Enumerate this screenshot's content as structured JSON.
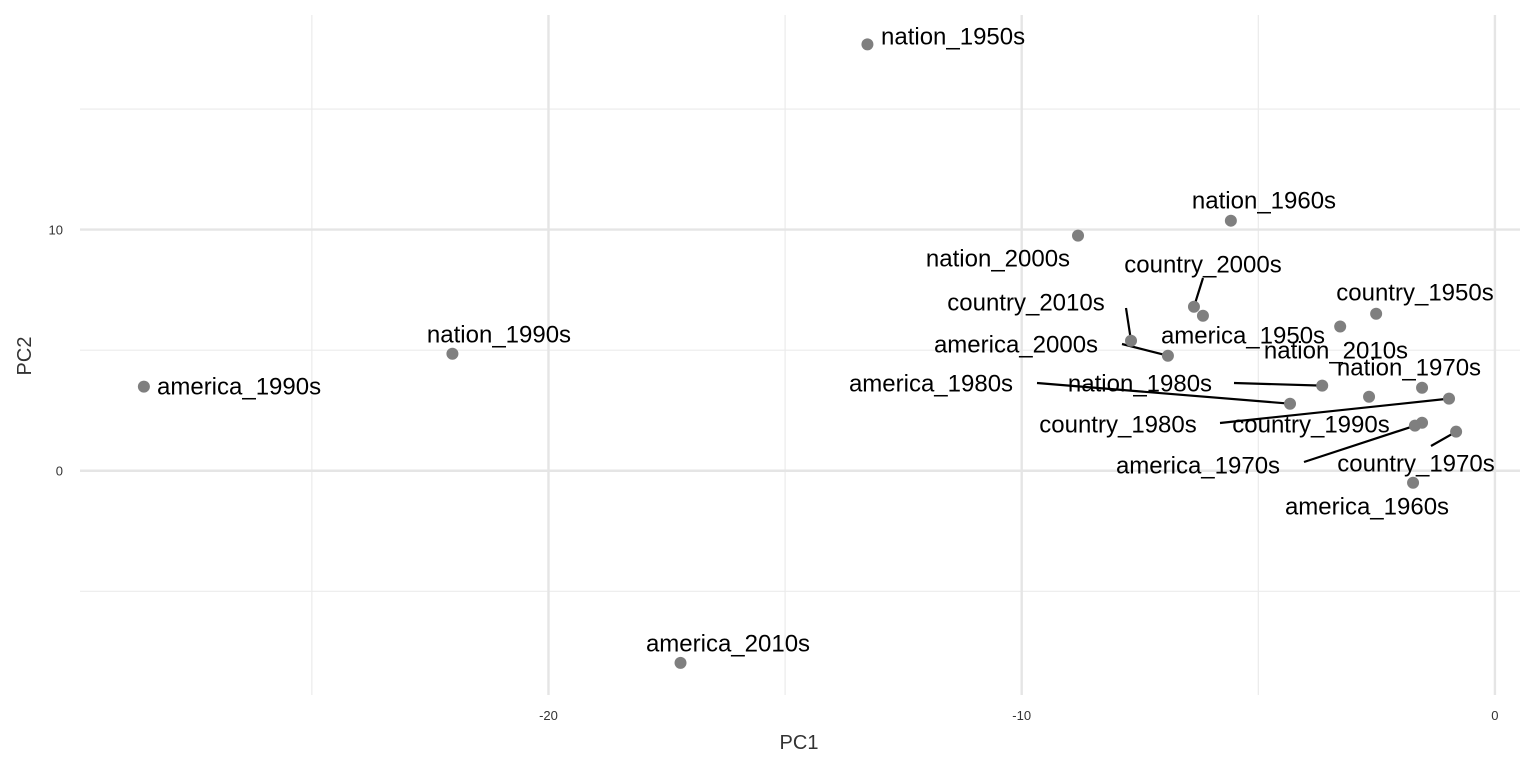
{
  "chart_data": {
    "type": "scatter",
    "title": "",
    "xlabel": "PC1",
    "ylabel": "PC2",
    "xlim": [
      -29.9,
      0.53
    ],
    "ylim": [
      -9.3,
      18.9
    ],
    "x_major_ticks": [
      -20,
      -10,
      0
    ],
    "x_minor_grid": [
      -25,
      -15,
      -5
    ],
    "y_major_ticks": [
      0,
      10
    ],
    "y_minor_grid": [
      -5,
      5,
      15
    ],
    "x_tick_labels": [
      "-20",
      "-10",
      "0"
    ],
    "y_tick_labels": [
      "0",
      "10"
    ],
    "grid": true,
    "point_color": "#7f7f7f",
    "points": [
      {
        "label": "nation_1950s",
        "x": -13.26,
        "y": 17.68
      },
      {
        "label": "america_1990s",
        "x": -28.55,
        "y": 3.49
      },
      {
        "label": "nation_1990s",
        "x": -22.03,
        "y": 4.85
      },
      {
        "label": "america_2010s",
        "x": -17.21,
        "y": -7.97
      },
      {
        "label": "nation_2000s",
        "x": -8.81,
        "y": 9.75
      },
      {
        "label": "nation_1960s",
        "x": -5.58,
        "y": 10.37
      },
      {
        "label": "country_2000s",
        "x": -6.36,
        "y": 6.8
      },
      {
        "label": "country_2010s",
        "x": -7.69,
        "y": 5.39
      },
      {
        "label": "america_1950s",
        "x": -6.17,
        "y": 6.43
      },
      {
        "label": "america_2000s",
        "x": -6.91,
        "y": 4.77
      },
      {
        "label": "country_1950s",
        "x": -2.51,
        "y": 6.51
      },
      {
        "label": "nation_2010s",
        "x": -3.27,
        "y": 5.98
      },
      {
        "label": "america_1980s",
        "x": -4.33,
        "y": 2.78
      },
      {
        "label": "nation_1980s",
        "x": -3.65,
        "y": 3.53
      },
      {
        "label": "nation_1970s",
        "x": -1.54,
        "y": 3.44
      },
      {
        "label": "country_1980s",
        "x": -0.97,
        "y": 2.99
      },
      {
        "label": "country_1990s",
        "x": -1.54,
        "y": 1.99
      },
      {
        "label": "america_1970s",
        "x": -1.69,
        "y": 1.87
      },
      {
        "label": "country_1970s",
        "x": -0.82,
        "y": 1.62
      },
      {
        "label": "america_1960s",
        "x": -1.73,
        "y": -0.5
      },
      {
        "label": "",
        "x": -2.66,
        "y": 3.07
      }
    ]
  }
}
